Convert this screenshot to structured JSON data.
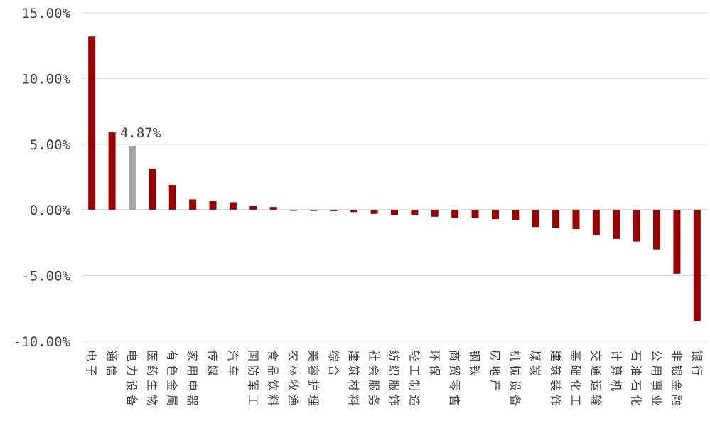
{
  "chart_data": {
    "type": "bar",
    "title": "",
    "xlabel": "",
    "ylabel": "",
    "ylim": [
      -10,
      15
    ],
    "yticks": [
      15,
      10,
      5,
      0,
      -5,
      -10
    ],
    "ytick_labels": [
      "15.00%",
      "10.00%",
      "5.00%",
      "0.00%",
      "-5.00%",
      "-10.00%"
    ],
    "grid": "horizontal",
    "categories": [
      "电子",
      "通信",
      "电力设备",
      "医药生物",
      "有色金属",
      "家用电器",
      "传媒",
      "汽车",
      "国防军工",
      "食品饮料",
      "农林牧渔",
      "美容护理",
      "综合",
      "建筑材料",
      "社会服务",
      "纺织服饰",
      "轻工制造",
      "环保",
      "商贸零售",
      "钢铁",
      "房地产",
      "机械设备",
      "煤炭",
      "建筑装饰",
      "基础化工",
      "交通运输",
      "计算机",
      "石油石化",
      "公用事业",
      "非银金融",
      "银行"
    ],
    "values": [
      13.2,
      5.9,
      4.87,
      3.15,
      1.9,
      0.8,
      0.7,
      0.58,
      0.3,
      0.22,
      -0.07,
      -0.08,
      -0.09,
      -0.17,
      -0.3,
      -0.4,
      -0.42,
      -0.52,
      -0.58,
      -0.6,
      -0.7,
      -0.78,
      -1.3,
      -1.35,
      -1.45,
      -1.9,
      -2.2,
      -2.4,
      -3.0,
      -4.85,
      -8.45
    ],
    "highlight_index": 2,
    "annotation": "4.87%",
    "colors": {
      "bar": "#990000",
      "highlight": "#a6a6a6",
      "grid": "#d9d9d9",
      "axis": "#7f7f7f",
      "text": "#404040"
    }
  }
}
